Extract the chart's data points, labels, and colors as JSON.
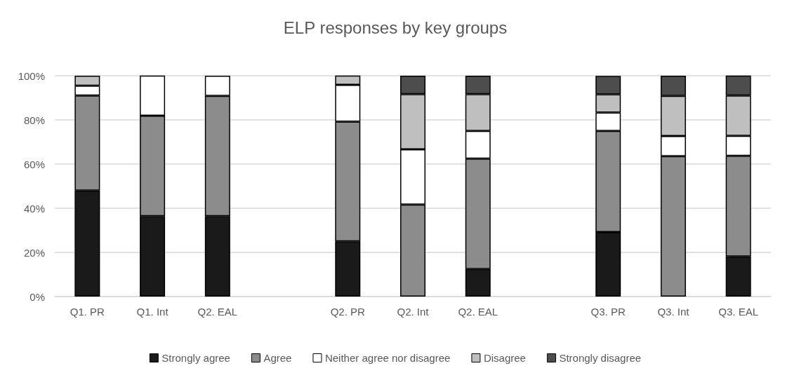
{
  "chart_data": {
    "type": "bar",
    "title": "ELP responses by key groups",
    "stacked": true,
    "categories": [
      "Q1. PR",
      "Q1. Int",
      "Q2. EAL",
      null,
      "Q2. PR",
      "Q2. Int",
      "Q2. EAL",
      null,
      "Q3. PR",
      "Q3. Int",
      "Q3. EAL"
    ],
    "series": [
      {
        "name": "Strongly agree",
        "color": "#1a1a1a",
        "values": [
          48,
          36.4,
          36.4,
          null,
          25,
          0,
          12.5,
          null,
          29.2,
          0,
          18.2
        ]
      },
      {
        "name": "Agree",
        "color": "#8c8c8c",
        "values": [
          43,
          45.5,
          54.5,
          null,
          54.2,
          41.7,
          50,
          null,
          45.8,
          63.6,
          45.5
        ]
      },
      {
        "name": "Neither agree nor disagree",
        "color": "#ffffff",
        "values": [
          4.5,
          18.2,
          9.1,
          null,
          16.7,
          25,
          12.5,
          null,
          8.3,
          9.1,
          9.1
        ]
      },
      {
        "name": "Disagree",
        "color": "#bfbfbf",
        "values": [
          4.5,
          0,
          0,
          null,
          4.2,
          25,
          16.7,
          null,
          8.3,
          18.2,
          18.2
        ]
      },
      {
        "name": "Strongly disagree",
        "color": "#4d4d4d",
        "values": [
          0,
          0,
          0,
          null,
          0,
          8.3,
          8.3,
          null,
          8.3,
          9.1,
          9.1
        ]
      }
    ],
    "ylim": [
      0,
      100
    ],
    "yticks": [
      {
        "value": 0,
        "label": "0%"
      },
      {
        "value": 20,
        "label": "20%"
      },
      {
        "value": 40,
        "label": "40%"
      },
      {
        "value": 60,
        "label": "60%"
      },
      {
        "value": 80,
        "label": "80%"
      },
      {
        "value": 100,
        "label": "100%"
      }
    ],
    "grid": "y",
    "legend": "bottom"
  }
}
